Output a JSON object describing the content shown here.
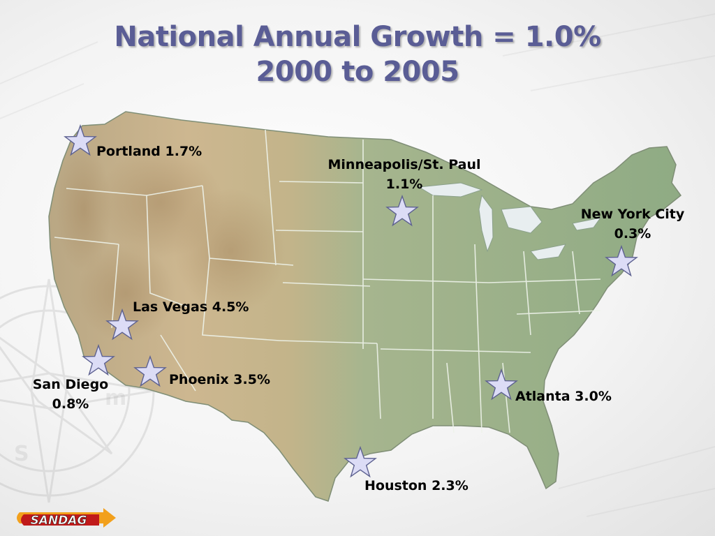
{
  "title": {
    "line1": "National Annual Growth = 1.0%",
    "line2": "2000 to 2005"
  },
  "cities": [
    {
      "name": "Portland",
      "lines": [
        "Portland 1.7%"
      ],
      "growth_percent": 1.7
    },
    {
      "name": "Minneapolis/St. Paul",
      "lines": [
        "Minneapolis/St. Paul",
        "1.1%"
      ],
      "growth_percent": 1.1
    },
    {
      "name": "New York City",
      "lines": [
        "New York City",
        "0.3%"
      ],
      "growth_percent": 0.3
    },
    {
      "name": "Las Vegas",
      "lines": [
        "Las Vegas 4.5%"
      ],
      "growth_percent": 4.5
    },
    {
      "name": "San Diego",
      "lines": [
        "San Diego",
        "0.8%"
      ],
      "growth_percent": 0.8
    },
    {
      "name": "Phoenix",
      "lines": [
        "Phoenix 3.5%"
      ],
      "growth_percent": 3.5
    },
    {
      "name": "Atlanta",
      "lines": [
        "Atlanta 3.0%"
      ],
      "growth_percent": 3.0
    },
    {
      "name": "Houston",
      "lines": [
        "Houston 2.3%"
      ],
      "growth_percent": 2.3
    }
  ],
  "logo": {
    "text": "SANDAG"
  },
  "colors": {
    "title": "#5a5d95",
    "land_east": "#94ae86",
    "land_west": "#c8b28c",
    "star_fill": "#dcdcf6",
    "star_stroke": "#5d6190",
    "logo_red": "#c01a1a",
    "logo_orange": "#f2a01c"
  },
  "icons": [
    "star-icon",
    "compass-rose-icon",
    "arrow-logo-icon"
  ]
}
